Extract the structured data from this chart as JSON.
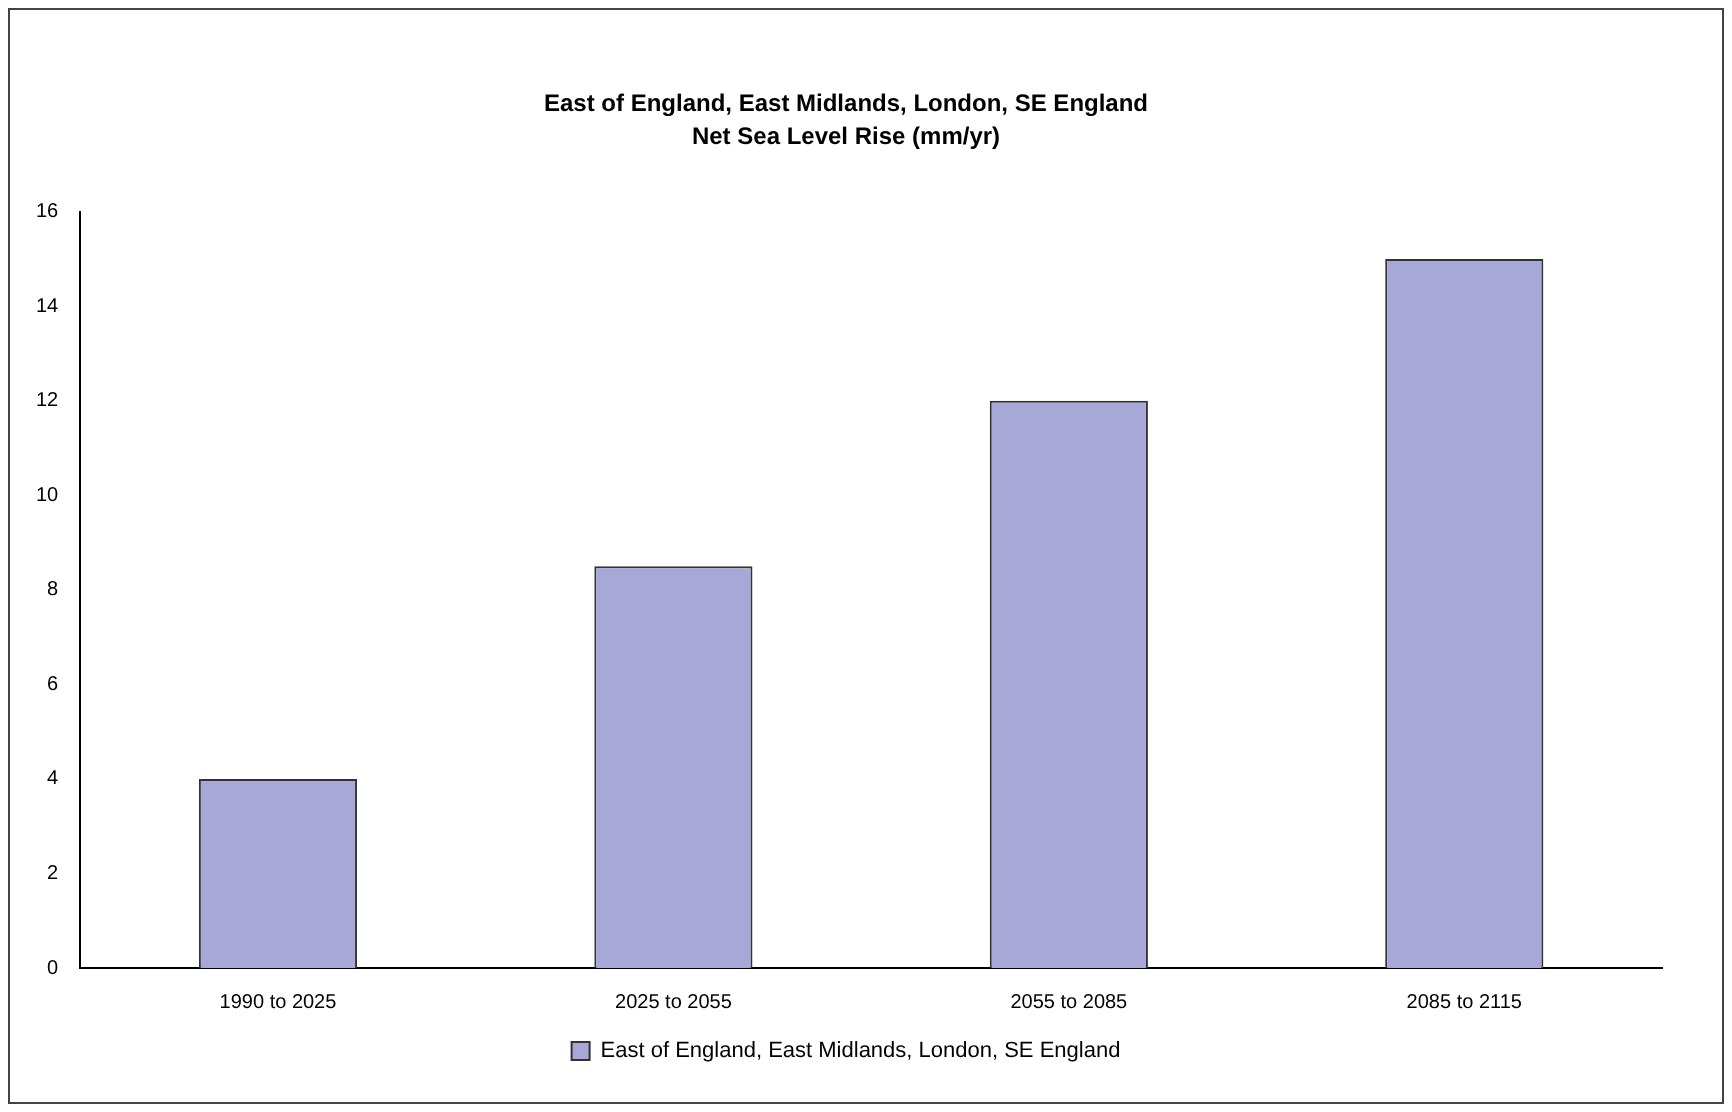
{
  "chart_data": {
    "type": "bar",
    "title": "East of England, East Midlands, London, SE England",
    "subtitle": "Net Sea Level Rise (mm/yr)",
    "categories": [
      "1990 to 2025",
      "2025 to 2055",
      "2055 to 2085",
      "2085 to 2115"
    ],
    "series": [
      {
        "name": "East of England, East Midlands, London, SE England",
        "color": "#a8a8d8",
        "values": [
          4,
          8.5,
          12,
          15
        ]
      }
    ],
    "ylim": [
      0,
      16
    ],
    "yticks": [
      0,
      2,
      4,
      6,
      8,
      10,
      12,
      14,
      16
    ],
    "grid": false,
    "legend": "bottom"
  }
}
